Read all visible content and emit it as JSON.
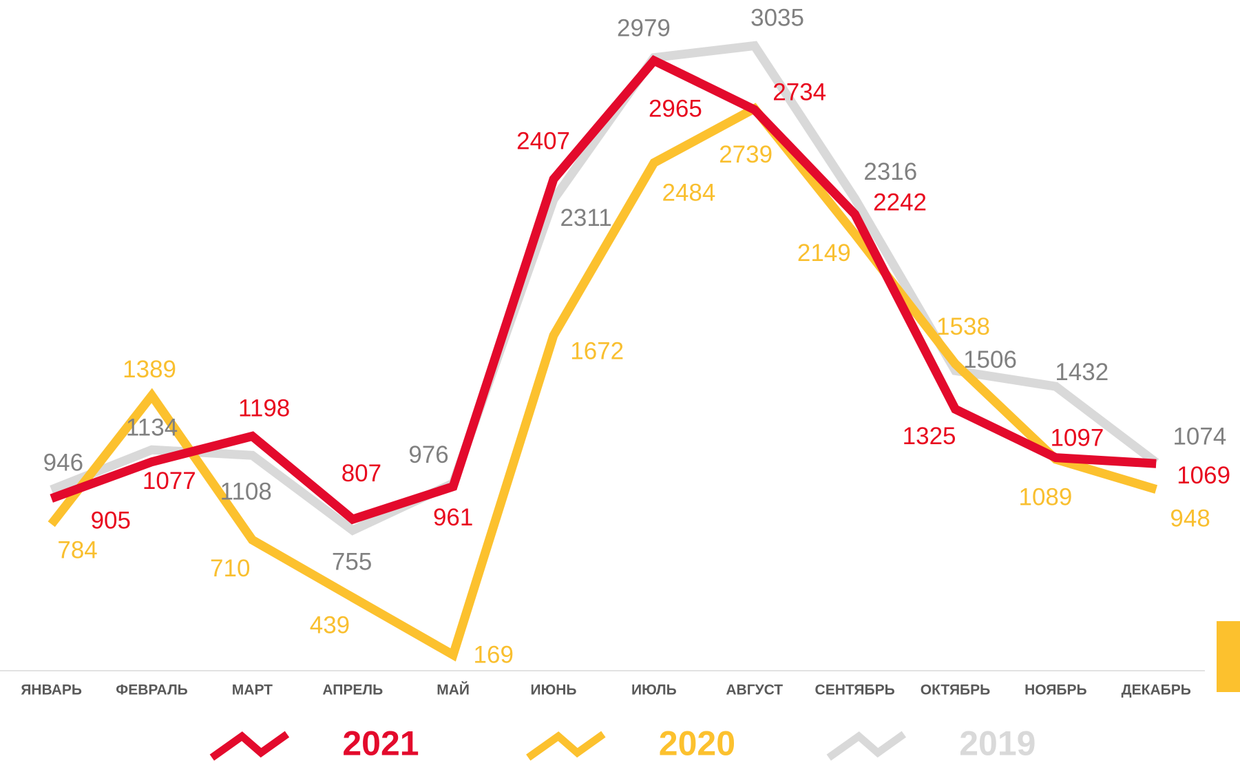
{
  "chart_data": {
    "type": "line",
    "categories": [
      "ЯНВАРЬ",
      "ФЕВРАЛЬ",
      "МАРТ",
      "АПРЕЛЬ",
      "МАЙ",
      "ИЮНЬ",
      "ИЮЛЬ",
      "АВГУСТ",
      "СЕНТЯБРЬ",
      "ОКТЯБРЬ",
      "НОЯБРЬ",
      "ДЕКАБРЬ"
    ],
    "ylim": [
      0,
      3250
    ],
    "series": [
      {
        "name": "2021",
        "color": "#e30a2c",
        "label_color": "#e8091e",
        "values": [
          905,
          1077,
          1198,
          807,
          961,
          2407,
          2965,
          2734,
          2242,
          1325,
          1097,
          1069
        ]
      },
      {
        "name": "2020",
        "color": "#fcc12e",
        "label_color": "#f9bf2f",
        "values": [
          784,
          1389,
          710,
          439,
          169,
          1672,
          2484,
          2739,
          2149,
          1538,
          1089,
          948
        ]
      },
      {
        "name": "2019",
        "color": "#d9d9d9",
        "label_color": "#808080",
        "values": [
          946,
          1134,
          1108,
          755,
          976,
          2311,
          2979,
          3035,
          2316,
          1506,
          1432,
          1074
        ]
      }
    ]
  }
}
